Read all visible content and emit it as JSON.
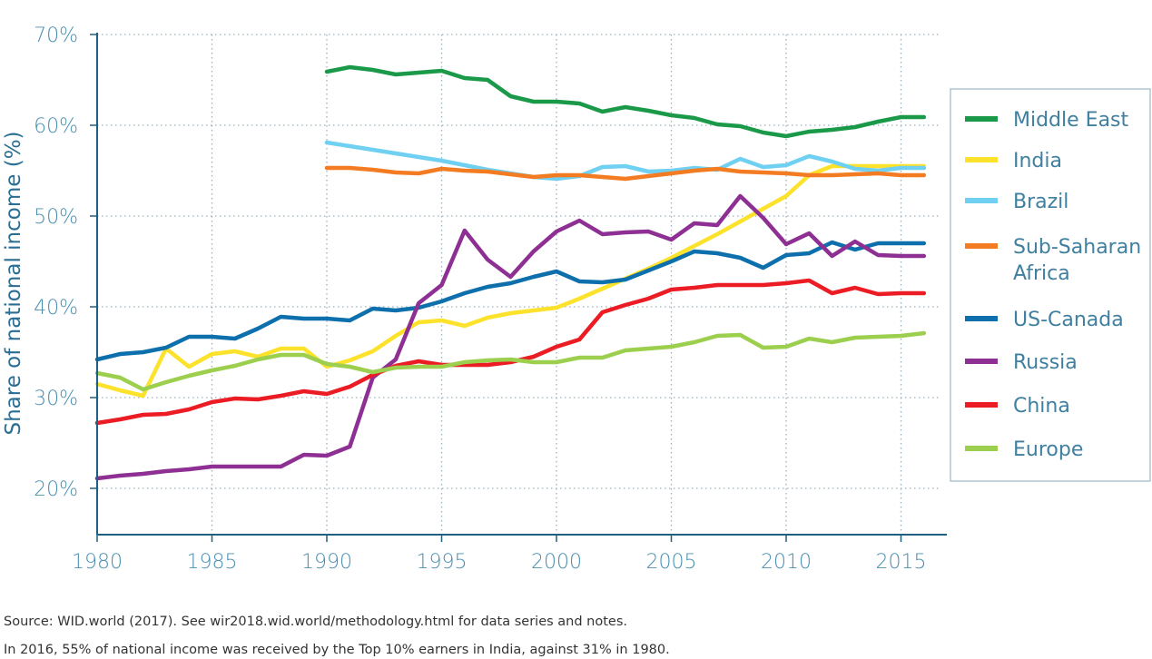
{
  "chart_data": {
    "type": "line",
    "title": "",
    "xlabel": "",
    "ylabel": "Share of national income (%)",
    "xlim": [
      1980,
      2016
    ],
    "ylim": [
      20,
      70
    ],
    "x_ticks": [
      "1980",
      "1985",
      "1990",
      "1995",
      "2000",
      "2005",
      "2010",
      "2015"
    ],
    "y_ticks": [
      "20%",
      "30%",
      "40%",
      "50%",
      "60%",
      "70%"
    ],
    "grid": true,
    "legend_position": "right",
    "colors": {
      "axis": "#1f5f7f",
      "tick_text": "#4a8fb0",
      "grid": "#9ab0bd",
      "legend_border": "#9ab7c8"
    },
    "series": [
      {
        "name": "Middle East",
        "color": "#1a9a49",
        "start": 1990,
        "values": [
          65.9,
          66.4,
          66.1,
          65.6,
          65.8,
          66.0,
          65.2,
          65.0,
          63.2,
          62.6,
          62.6,
          62.4,
          61.5,
          62.0,
          61.6,
          61.1,
          60.8,
          60.1,
          59.9,
          59.2,
          58.8,
          59.3,
          59.5,
          59.8,
          60.4,
          60.9,
          60.9
        ]
      },
      {
        "name": "India",
        "color": "#fce22a",
        "start": 1980,
        "values": [
          31.5,
          30.8,
          30.2,
          35.4,
          33.4,
          34.8,
          35.1,
          34.5,
          35.4,
          35.4,
          33.4,
          34.1,
          35.1,
          36.8,
          38.3,
          38.5,
          37.9,
          38.8,
          39.3,
          39.6,
          39.9,
          40.9,
          42.0,
          43.1,
          44.2,
          45.4,
          46.7,
          48.0,
          49.4,
          50.8,
          52.2,
          54.5,
          55.5,
          55.5,
          55.5,
          55.5,
          55.5
        ]
      },
      {
        "name": "Brazil",
        "color": "#6fd0f2",
        "start": 1990,
        "values": [
          58.1,
          57.7,
          57.3,
          56.9,
          56.5,
          56.1,
          55.6,
          55.1,
          54.7,
          54.3,
          54.1,
          54.4,
          55.4,
          55.5,
          54.9,
          55.0,
          55.3,
          55.1,
          56.3,
          55.4,
          55.6,
          56.6,
          56.0,
          55.2,
          55.0,
          55.3,
          55.3
        ]
      },
      {
        "name": "Sub-Saharan Africa",
        "color": "#f37c23",
        "start": 1990,
        "values": [
          55.3,
          55.3,
          55.1,
          54.8,
          54.7,
          55.2,
          55.0,
          54.9,
          54.6,
          54.3,
          54.5,
          54.5,
          54.3,
          54.1,
          54.4,
          54.7,
          55.0,
          55.2,
          54.9,
          54.8,
          54.7,
          54.5,
          54.5,
          54.6,
          54.7,
          54.5,
          54.5
        ]
      },
      {
        "name": "US-Canada",
        "color": "#0d6fac",
        "start": 1980,
        "values": [
          34.2,
          34.8,
          35.0,
          35.5,
          36.7,
          36.7,
          36.5,
          37.6,
          38.9,
          38.7,
          38.7,
          38.5,
          39.8,
          39.6,
          39.9,
          40.6,
          41.5,
          42.2,
          42.6,
          43.3,
          43.9,
          42.8,
          42.7,
          43.0,
          44.0,
          45.0,
          46.1,
          45.9,
          45.4,
          44.3,
          45.7,
          45.9,
          47.1,
          46.3,
          47.0,
          47.0,
          47.0
        ]
      },
      {
        "name": "Russia",
        "color": "#8e2f93",
        "start": 1980,
        "values": [
          21.1,
          21.4,
          21.6,
          21.9,
          22.1,
          22.4,
          22.4,
          22.4,
          22.4,
          23.7,
          23.6,
          24.6,
          32.2,
          34.2,
          40.4,
          42.4,
          48.4,
          45.2,
          43.3,
          46.1,
          48.3,
          49.5,
          48.0,
          48.2,
          48.3,
          47.4,
          49.2,
          49.0,
          52.2,
          49.8,
          46.9,
          48.1,
          45.6,
          47.2,
          45.7,
          45.6,
          45.6
        ]
      },
      {
        "name": "China",
        "color": "#ec1c24",
        "start": 1980,
        "values": [
          27.2,
          27.6,
          28.1,
          28.2,
          28.7,
          29.5,
          29.9,
          29.8,
          30.2,
          30.7,
          30.4,
          31.2,
          32.5,
          33.5,
          34.0,
          33.6,
          33.6,
          33.6,
          33.9,
          34.5,
          35.6,
          36.4,
          39.4,
          40.2,
          40.9,
          41.9,
          42.1,
          42.4,
          42.4,
          42.4,
          42.6,
          42.9,
          41.5,
          42.1,
          41.4,
          41.5,
          41.5
        ]
      },
      {
        "name": "Europe",
        "color": "#9bcf4d",
        "start": 1980,
        "values": [
          32.7,
          32.2,
          30.9,
          31.7,
          32.4,
          33.0,
          33.5,
          34.2,
          34.7,
          34.7,
          33.7,
          33.4,
          32.8,
          33.3,
          33.4,
          33.4,
          33.9,
          34.1,
          34.2,
          33.9,
          33.9,
          34.4,
          34.4,
          35.2,
          35.4,
          35.6,
          36.1,
          36.8,
          36.9,
          35.5,
          35.6,
          36.5,
          36.1,
          36.6,
          36.7,
          36.8,
          37.1
        ]
      }
    ]
  },
  "legend": {
    "items": [
      {
        "lines": [
          "Middle East"
        ],
        "color": "#1a9a49"
      },
      {
        "lines": [
          "India"
        ],
        "color": "#fce22a"
      },
      {
        "lines": [
          "Brazil"
        ],
        "color": "#6fd0f2"
      },
      {
        "lines": [
          "Sub-Saharan",
          "Africa"
        ],
        "color": "#f37c23"
      },
      {
        "lines": [
          "US-Canada"
        ],
        "color": "#0d6fac"
      },
      {
        "lines": [
          "Russia"
        ],
        "color": "#8e2f93"
      },
      {
        "lines": [
          "China"
        ],
        "color": "#ec1c24"
      },
      {
        "lines": [
          "Europe"
        ],
        "color": "#9bcf4d"
      }
    ]
  },
  "notes": {
    "source": "Source: WID.world (2017). See wir2018.wid.world/methodology.html for data series and notes.",
    "caption": "In 2016, 55% of national income was received by the Top 10% earners in India, against 31% in 1980."
  }
}
